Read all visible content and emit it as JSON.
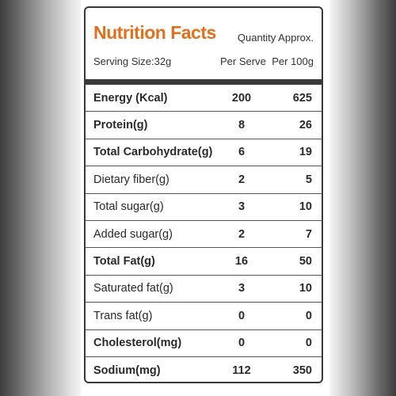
{
  "header": {
    "title": "Nutrition Facts",
    "quantity_note": "Quantity Approx.",
    "serving_size": "Serving Size:32g",
    "col_per_serve": "Per Serve",
    "col_per_100g": "Per 100g"
  },
  "colors": {
    "title": "#e2701c",
    "rule": "#3a3a3a"
  },
  "rows": [
    {
      "name": "Energy (Kcal)",
      "per_serve": "200",
      "per_100g": "625",
      "bold": true
    },
    {
      "name": "Protein(g)",
      "per_serve": "8",
      "per_100g": "26",
      "bold": true
    },
    {
      "name": "Total Carbohydrate(g)",
      "per_serve": "6",
      "per_100g": "19",
      "bold": true
    },
    {
      "name": "Dietary fiber(g)",
      "per_serve": "2",
      "per_100g": "5",
      "bold": false
    },
    {
      "name": "Total sugar(g)",
      "per_serve": "3",
      "per_100g": "10",
      "bold": false
    },
    {
      "name": "Added sugar(g)",
      "per_serve": "2",
      "per_100g": "7",
      "bold": false
    },
    {
      "name": "Total Fat(g)",
      "per_serve": "16",
      "per_100g": "50",
      "bold": true
    },
    {
      "name": "Saturated fat(g)",
      "per_serve": "3",
      "per_100g": "10",
      "bold": false
    },
    {
      "name": "Trans fat(g)",
      "per_serve": "0",
      "per_100g": "0",
      "bold": false
    },
    {
      "name": "Cholesterol(mg)",
      "per_serve": "0",
      "per_100g": "0",
      "bold": true
    },
    {
      "name": "Sodium(mg)",
      "per_serve": "112",
      "per_100g": "350",
      "bold": true
    }
  ]
}
